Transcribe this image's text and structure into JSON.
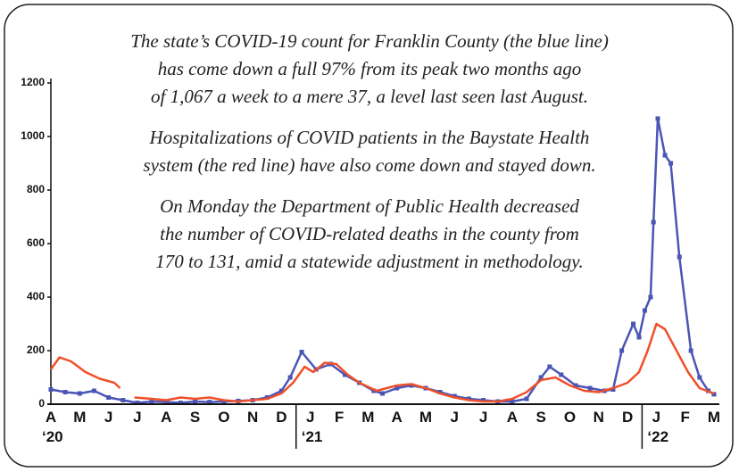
{
  "chart_data": {
    "type": "line",
    "annotation": [
      "The state’s COVID-19 count for Franklin County (the blue line)",
      "has come down a full 97% from its peak two months ago",
      "of 1,067 a week to a mere 37, a level last seen last August.",
      "Hospitalizations of COVID patients in the Baystate Health",
      "system (the red line) have also come down and stayed down.",
      "On Monday the Department of Public Health decreased",
      "the number of COVID-related deaths in the county from",
      "170 to 131, amid a statewide adjustment in methodology."
    ],
    "xlim": [
      0,
      23
    ],
    "xticks": [
      {
        "value": 0,
        "label": "A"
      },
      {
        "value": 1,
        "label": "M"
      },
      {
        "value": 2,
        "label": "J"
      },
      {
        "value": 3,
        "label": "J"
      },
      {
        "value": 4,
        "label": "A"
      },
      {
        "value": 5,
        "label": "S"
      },
      {
        "value": 6,
        "label": "O"
      },
      {
        "value": 7,
        "label": "N"
      },
      {
        "value": 8,
        "label": "D"
      },
      {
        "value": 9,
        "label": "J"
      },
      {
        "value": 10,
        "label": "F"
      },
      {
        "value": 11,
        "label": "M"
      },
      {
        "value": 12,
        "label": "A"
      },
      {
        "value": 13,
        "label": "M"
      },
      {
        "value": 14,
        "label": "J"
      },
      {
        "value": 15,
        "label": "J"
      },
      {
        "value": 16,
        "label": "A"
      },
      {
        "value": 17,
        "label": "S"
      },
      {
        "value": 18,
        "label": "O"
      },
      {
        "value": 19,
        "label": "N"
      },
      {
        "value": 20,
        "label": "D"
      },
      {
        "value": 21,
        "label": "J"
      },
      {
        "value": 22,
        "label": "F"
      },
      {
        "value": 23,
        "label": "M"
      }
    ],
    "year_ticks": [
      {
        "value": 0,
        "label": "‘20"
      },
      {
        "value": 9,
        "label": "‘21"
      },
      {
        "value": 21,
        "label": "‘22"
      }
    ],
    "ylim": [
      0,
      1200
    ],
    "yticks": [
      0,
      200,
      400,
      600,
      800,
      1000,
      1200
    ],
    "series": [
      {
        "name": "Franklin County cases",
        "color": "#4a55b5",
        "x": [
          0,
          0.5,
          1,
          1.5,
          2,
          2.5,
          3,
          3.5,
          4,
          4.5,
          5,
          5.5,
          6,
          6.5,
          7,
          7.5,
          8,
          8.3,
          8.7,
          9.2,
          9.7,
          10.2,
          10.7,
          11.2,
          11.5,
          12,
          12.5,
          13,
          13.5,
          14,
          14.5,
          15,
          15.5,
          16,
          16.5,
          17,
          17.3,
          17.7,
          18.2,
          18.7,
          19.2,
          19.5,
          19.8,
          20.2,
          20.4,
          20.6,
          20.8,
          20.9,
          21.05,
          21.3,
          21.5,
          21.8,
          22.2,
          22.5,
          22.8,
          23
        ],
        "values": [
          55,
          45,
          40,
          50,
          25,
          15,
          5,
          10,
          8,
          5,
          10,
          8,
          10,
          12,
          15,
          25,
          50,
          100,
          195,
          130,
          150,
          110,
          80,
          50,
          40,
          60,
          70,
          60,
          45,
          30,
          20,
          15,
          10,
          10,
          20,
          100,
          140,
          110,
          70,
          60,
          50,
          55,
          200,
          300,
          250,
          350,
          400,
          680,
          1067,
          930,
          900,
          550,
          200,
          100,
          50,
          37
        ]
      },
      {
        "name": "Baystate Health hospitalizations",
        "color": "#f0502a",
        "x": [
          0,
          0.3,
          0.7,
          1.2,
          1.7,
          2.2,
          2.4,
          2.65,
          2.9,
          3.5,
          4,
          4.5,
          5,
          5.5,
          6,
          6.5,
          7,
          7.5,
          8,
          8.4,
          8.8,
          9.1,
          9.5,
          9.9,
          10.3,
          10.7,
          11.3,
          12,
          12.5,
          13,
          13.5,
          14,
          14.5,
          15,
          15.5,
          16,
          16.5,
          17,
          17.5,
          18,
          18.5,
          19,
          19.5,
          20,
          20.4,
          20.7,
          21,
          21.3,
          21.7,
          22.1,
          22.5,
          23
        ],
        "values": [
          130,
          175,
          160,
          120,
          95,
          80,
          60,
          null,
          25,
          20,
          15,
          25,
          20,
          25,
          15,
          10,
          15,
          20,
          40,
          80,
          140,
          120,
          155,
          150,
          110,
          80,
          50,
          70,
          75,
          60,
          40,
          25,
          15,
          10,
          10,
          20,
          45,
          90,
          100,
          70,
          50,
          45,
          60,
          80,
          120,
          200,
          300,
          280,
          200,
          120,
          60,
          40
        ]
      }
    ]
  }
}
